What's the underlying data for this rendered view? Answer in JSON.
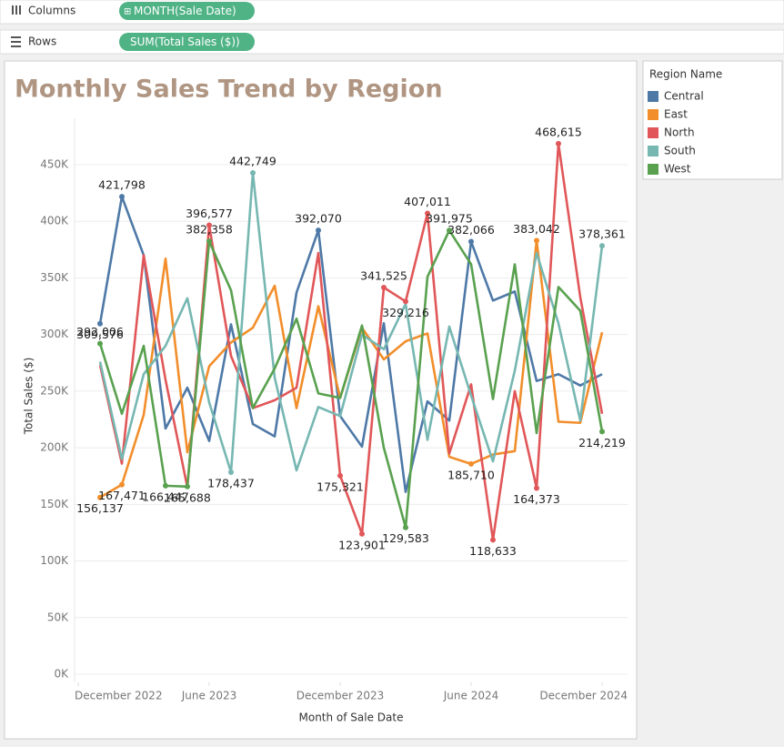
{
  "shelves": {
    "columns": {
      "label": "Columns",
      "pill": "MONTH(Sale Date)"
    },
    "rows": {
      "label": "Rows",
      "pill": "SUM(Total Sales ($))"
    }
  },
  "chart_data": {
    "type": "line",
    "title": "Monthly Sales Trend by Region",
    "x_label": "Month of Sale Date",
    "y_label": "Total Sales ($)",
    "legend_title": "Region Name",
    "legend": "right",
    "grid": true,
    "x": [
      "2023-01",
      "2023-02",
      "2023-03",
      "2023-04",
      "2023-05",
      "2023-06",
      "2023-07",
      "2023-08",
      "2023-09",
      "2023-10",
      "2023-11",
      "2023-12",
      "2024-01",
      "2024-02",
      "2024-03",
      "2024-04",
      "2024-05",
      "2024-06",
      "2024-07",
      "2024-08",
      "2024-09",
      "2024-10",
      "2024-11",
      "2024-12"
    ],
    "xticks": [
      {
        "value": "2022-12",
        "label": "December 2022"
      },
      {
        "value": "2023-06",
        "label": "June 2023"
      },
      {
        "value": "2023-12",
        "label": "December 2023"
      },
      {
        "value": "2024-06",
        "label": "June 2024"
      },
      {
        "value": "2024-12",
        "label": "December 2024"
      }
    ],
    "ylim": [
      0,
      480000
    ],
    "yticks": [
      {
        "value": 0,
        "label": "0K"
      },
      {
        "value": 50000,
        "label": "50K"
      },
      {
        "value": 100000,
        "label": "100K"
      },
      {
        "value": 150000,
        "label": "150K"
      },
      {
        "value": 200000,
        "label": "200K"
      },
      {
        "value": 250000,
        "label": "250K"
      },
      {
        "value": 300000,
        "label": "300K"
      },
      {
        "value": 350000,
        "label": "350K"
      },
      {
        "value": 400000,
        "label": "400K"
      },
      {
        "value": 450000,
        "label": "450K"
      }
    ],
    "series": [
      {
        "name": "Central",
        "color": "#4e79a7",
        "values": [
          309576,
          421798,
          370000,
          217000,
          253000,
          206000,
          309000,
          221000,
          210000,
          337000,
          392070,
          228000,
          201000,
          310000,
          161000,
          241000,
          224000,
          382066,
          330000,
          338000,
          259000,
          265000,
          255000,
          265000
        ],
        "value_labels": [
          "309,576",
          "421,798",
          null,
          null,
          null,
          null,
          null,
          null,
          null,
          null,
          "392,070",
          null,
          null,
          null,
          null,
          null,
          null,
          "382,066",
          null,
          null,
          null,
          null,
          null,
          null
        ]
      },
      {
        "name": "East",
        "color": "#f28e2b",
        "values": [
          156137,
          167471,
          229000,
          367000,
          196000,
          272000,
          293000,
          306000,
          343000,
          235000,
          325000,
          244000,
          306000,
          278000,
          294000,
          301000,
          192000,
          185710,
          194000,
          197000,
          383042,
          223000,
          222000,
          302000
        ],
        "value_labels": [
          "156,137",
          "167,471",
          null,
          null,
          null,
          null,
          null,
          null,
          null,
          null,
          null,
          null,
          null,
          null,
          null,
          null,
          null,
          "185,710",
          null,
          null,
          "383,042",
          null,
          null,
          null
        ]
      },
      {
        "name": "North",
        "color": "#e15759",
        "values": [
          273000,
          186000,
          370000,
          260000,
          165000,
          396577,
          281000,
          235000,
          242000,
          253000,
          372000,
          175321,
          123901,
          341525,
          329216,
          407011,
          195000,
          256000,
          118633,
          250000,
          164373,
          468615,
          333000,
          230000
        ],
        "value_labels": [
          null,
          null,
          null,
          null,
          null,
          "396,577",
          null,
          null,
          null,
          null,
          null,
          "175,321",
          "123,901",
          "341,525",
          "329,216",
          "407,011",
          null,
          null,
          "118,633",
          null,
          "164,373",
          "468,615",
          null,
          null
        ]
      },
      {
        "name": "South",
        "color": "#76b7b2",
        "values": [
          276000,
          190000,
          265000,
          290000,
          332000,
          240000,
          178437,
          442749,
          262000,
          180000,
          236000,
          228000,
          300000,
          287000,
          327000,
          207000,
          307000,
          246000,
          188000,
          268000,
          372000,
          310000,
          224000,
          378361
        ],
        "value_labels": [
          null,
          null,
          null,
          null,
          null,
          null,
          "178,437",
          "442,749",
          null,
          null,
          null,
          null,
          null,
          null,
          null,
          null,
          null,
          null,
          null,
          null,
          null,
          null,
          null,
          "378,361"
        ]
      },
      {
        "name": "West",
        "color": "#59a14f",
        "values": [
          292006,
          230000,
          290000,
          166447,
          165688,
          382358,
          339000,
          235000,
          270000,
          314000,
          248000,
          244000,
          308000,
          200000,
          129583,
          351000,
          391975,
          362000,
          243000,
          362000,
          213000,
          342000,
          321000,
          214219
        ],
        "value_labels": [
          "292,006",
          null,
          null,
          "166,447",
          "165,688",
          "382,358",
          null,
          null,
          null,
          null,
          null,
          null,
          null,
          null,
          "129,583",
          null,
          "391,975",
          null,
          null,
          null,
          null,
          null,
          null,
          "214,219"
        ]
      }
    ]
  }
}
